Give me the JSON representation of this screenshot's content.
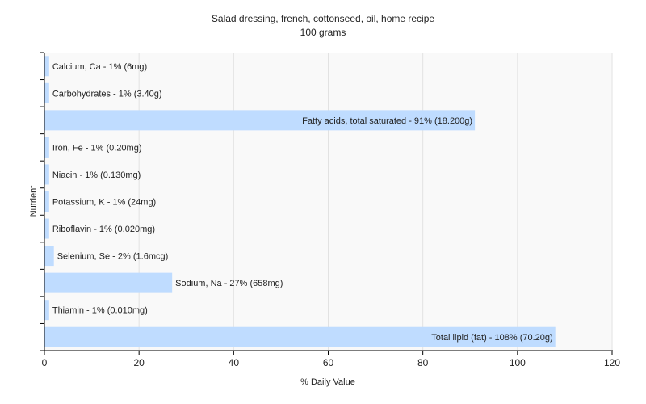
{
  "chart_data": {
    "type": "bar",
    "orientation": "horizontal",
    "title": "Salad dressing, french, cottonseed, oil, home recipe",
    "subtitle": "100 grams",
    "xlabel": "% Daily Value",
    "ylabel": "Nutrient",
    "xlim": [
      0,
      120
    ],
    "xticks": [
      0,
      20,
      40,
      60,
      80,
      100,
      120
    ],
    "grid": true,
    "bar_color": "#bfdcff",
    "categories": [
      "Calcium, Ca",
      "Carbohydrates",
      "Fatty acids, total saturated",
      "Iron, Fe",
      "Niacin",
      "Potassium, K",
      "Riboflavin",
      "Selenium, Se",
      "Sodium, Na",
      "Thiamin",
      "Total lipid (fat)"
    ],
    "values": [
      1,
      1,
      91,
      1,
      1,
      1,
      1,
      2,
      27,
      1,
      108
    ],
    "labels": [
      "Calcium, Ca - 1% (6mg)",
      "Carbohydrates - 1% (3.40g)",
      "Fatty acids, total saturated - 91% (18.200g)",
      "Iron, Fe - 1% (0.20mg)",
      "Niacin - 1% (0.130mg)",
      "Potassium, K - 1% (24mg)",
      "Riboflavin - 1% (0.020mg)",
      "Selenium, Se - 2% (1.6mcg)",
      "Sodium, Na - 27% (658mg)",
      "Thiamin - 1% (0.010mg)",
      "Total lipid (fat) - 108% (70.20g)"
    ]
  }
}
